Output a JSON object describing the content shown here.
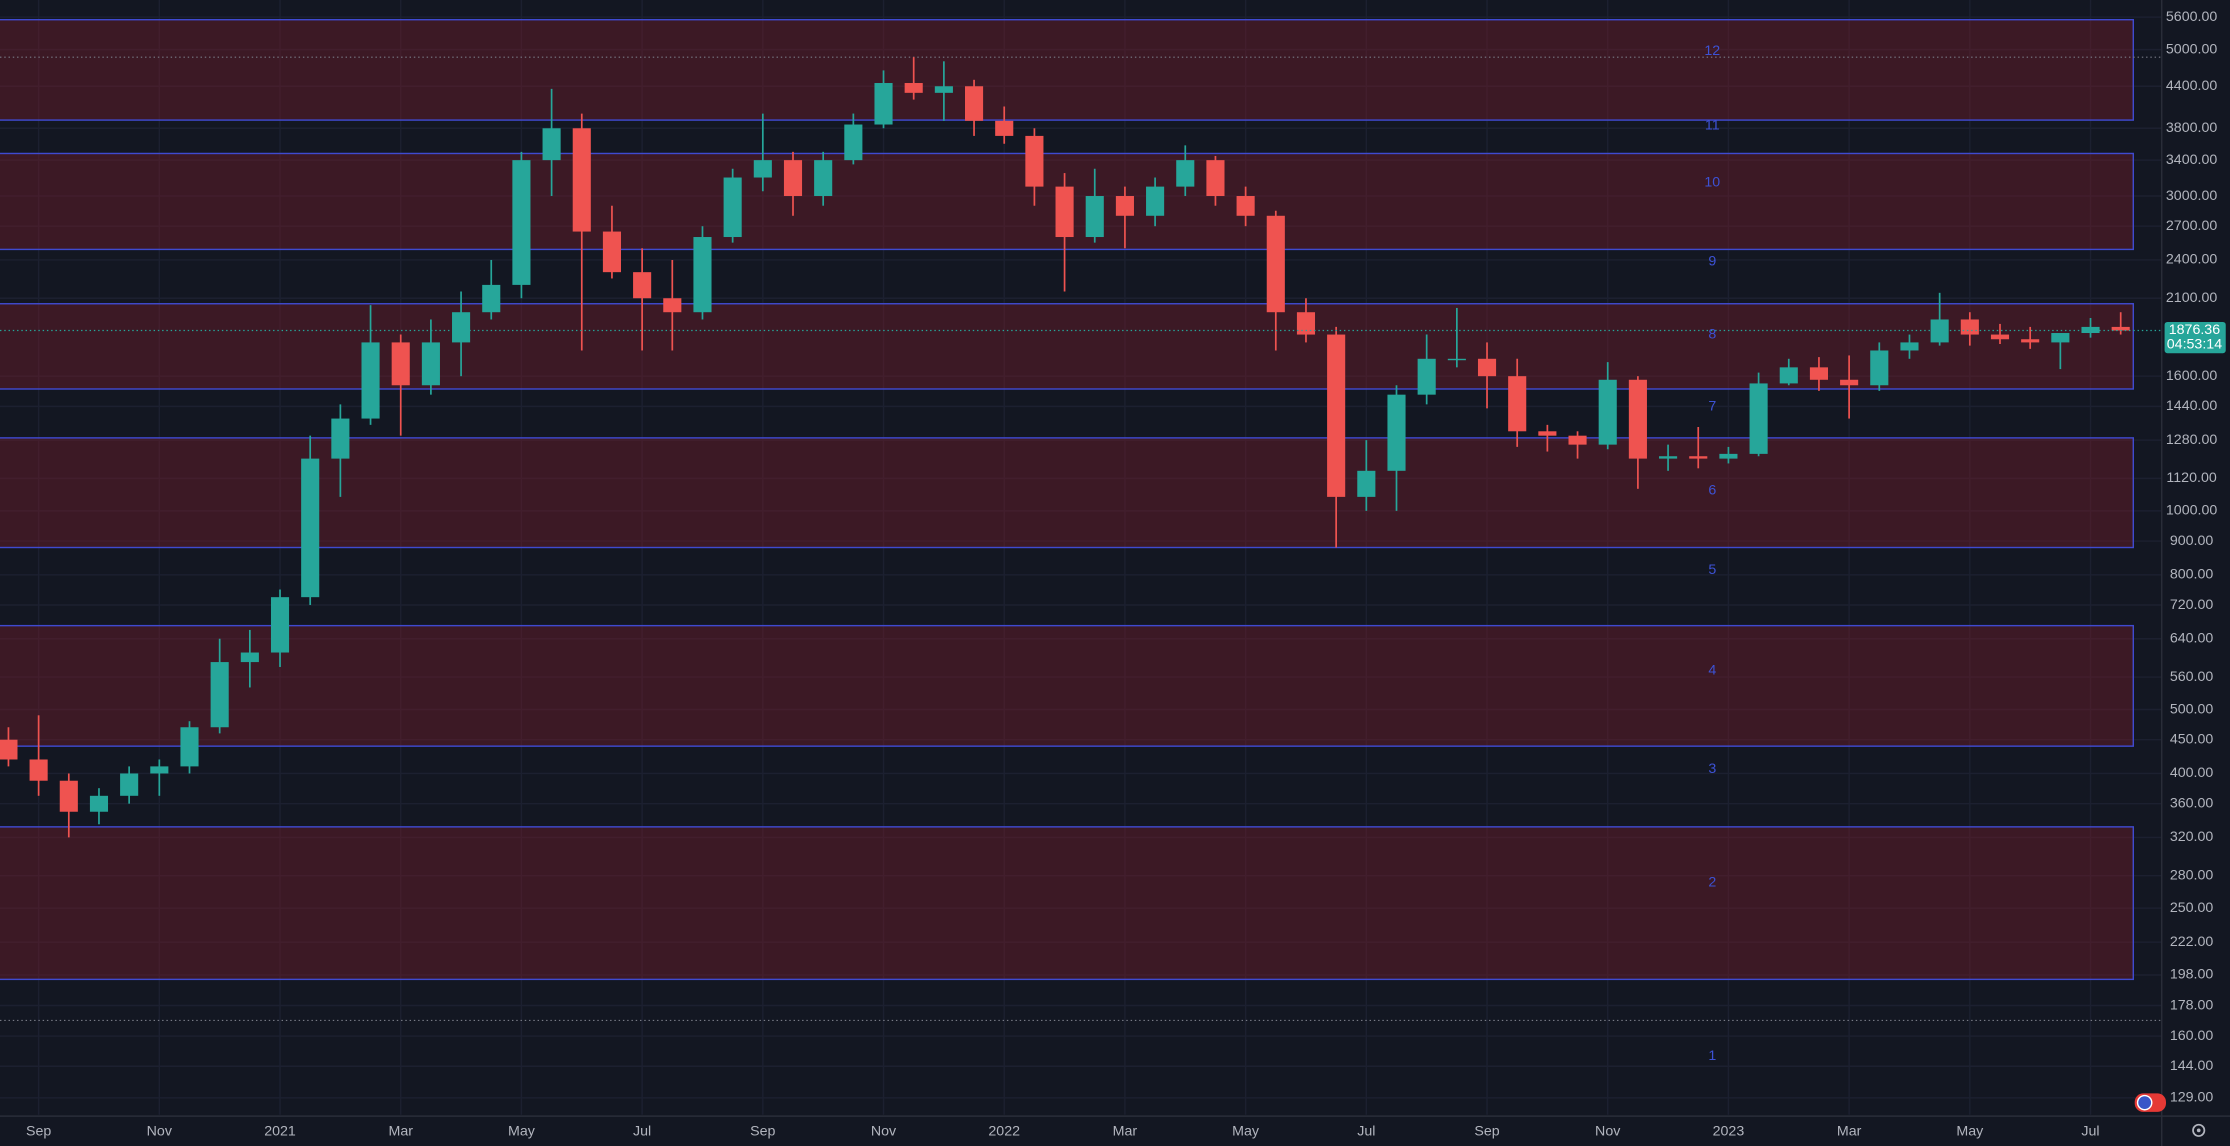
{
  "chart_data": {
    "type": "candlestick",
    "log_scale": true,
    "grid": true,
    "up_color": "#26a69a",
    "down_color": "#ef5350",
    "zone_stroke": "#3f4ad0",
    "zone_fill": "rgba(128,30,42,0.38)",
    "level_color": "#3d52d5",
    "ohlc": [
      [
        450,
        470,
        410,
        420
      ],
      [
        420,
        490,
        370,
        390
      ],
      [
        390,
        400,
        320,
        350
      ],
      [
        350,
        380,
        335,
        370
      ],
      [
        370,
        410,
        360,
        400
      ],
      [
        400,
        420,
        370,
        410
      ],
      [
        410,
        480,
        400,
        470
      ],
      [
        470,
        640,
        460,
        590
      ],
      [
        590,
        660,
        540,
        610
      ],
      [
        610,
        760,
        580,
        740
      ],
      [
        740,
        1300,
        720,
        1200
      ],
      [
        1200,
        1450,
        1050,
        1380
      ],
      [
        1380,
        2050,
        1350,
        1800
      ],
      [
        1800,
        1850,
        1300,
        1550
      ],
      [
        1550,
        1950,
        1500,
        1800
      ],
      [
        1800,
        2150,
        1600,
        2000
      ],
      [
        2000,
        2400,
        1950,
        2200
      ],
      [
        2200,
        3500,
        2100,
        3400
      ],
      [
        3400,
        4360,
        3000,
        3800
      ],
      [
        3800,
        4000,
        1750,
        2650
      ],
      [
        2650,
        2900,
        2250,
        2300
      ],
      [
        2300,
        2500,
        1750,
        2100
      ],
      [
        2100,
        2400,
        1750,
        2000
      ],
      [
        2000,
        2700,
        1950,
        2600
      ],
      [
        2600,
        3300,
        2550,
        3200
      ],
      [
        3200,
        4000,
        3050,
        3400
      ],
      [
        3400,
        3500,
        2800,
        3000
      ],
      [
        3000,
        3500,
        2900,
        3400
      ],
      [
        3400,
        4000,
        3350,
        3850
      ],
      [
        3850,
        4650,
        3800,
        4450
      ],
      [
        4450,
        4870,
        4200,
        4300
      ],
      [
        4300,
        4800,
        3900,
        4400
      ],
      [
        4400,
        4500,
        3700,
        3900
      ],
      [
        3900,
        4100,
        3600,
        3700
      ],
      [
        3700,
        3800,
        2900,
        3100
      ],
      [
        3100,
        3250,
        2150,
        2600
      ],
      [
        2600,
        3300,
        2550,
        3000
      ],
      [
        3000,
        3100,
        2500,
        2800
      ],
      [
        2800,
        3200,
        2700,
        3100
      ],
      [
        3100,
        3580,
        3000,
        3400
      ],
      [
        3400,
        3450,
        2900,
        3000
      ],
      [
        3000,
        3100,
        2700,
        2800
      ],
      [
        2800,
        2850,
        1750,
        2000
      ],
      [
        2000,
        2100,
        1800,
        1850
      ],
      [
        1850,
        1900,
        880,
        1050
      ],
      [
        1050,
        1280,
        1000,
        1150
      ],
      [
        1150,
        1550,
        1000,
        1500
      ],
      [
        1500,
        1850,
        1450,
        1700
      ],
      [
        1700,
        2030,
        1650,
        1700
      ],
      [
        1700,
        1800,
        1430,
        1600
      ],
      [
        1600,
        1700,
        1250,
        1320
      ],
      [
        1320,
        1350,
        1230,
        1300
      ],
      [
        1300,
        1320,
        1200,
        1260
      ],
      [
        1260,
        1680,
        1240,
        1580
      ],
      [
        1580,
        1600,
        1080,
        1200
      ],
      [
        1200,
        1260,
        1150,
        1210
      ],
      [
        1210,
        1340,
        1160,
        1200
      ],
      [
        1200,
        1250,
        1180,
        1220
      ],
      [
        1220,
        1620,
        1210,
        1560
      ],
      [
        1560,
        1700,
        1550,
        1650
      ],
      [
        1650,
        1710,
        1520,
        1580
      ],
      [
        1580,
        1720,
        1380,
        1550
      ],
      [
        1550,
        1800,
        1520,
        1750
      ],
      [
        1750,
        1850,
        1700,
        1800
      ],
      [
        1800,
        2140,
        1780,
        1950
      ],
      [
        1950,
        2000,
        1780,
        1850
      ],
      [
        1850,
        1920,
        1790,
        1820
      ],
      [
        1820,
        1900,
        1760,
        1800
      ],
      [
        1800,
        1850,
        1640,
        1860
      ],
      [
        1860,
        1960,
        1830,
        1900
      ],
      [
        1900,
        2000,
        1850,
        1876.36
      ]
    ],
    "xlim": [
      -0.28,
      71.36
    ],
    "xticks": [
      {
        "value": 1,
        "label": "Sep"
      },
      {
        "value": 5,
        "label": "Nov"
      },
      {
        "value": 9,
        "label": "2021"
      },
      {
        "value": 13,
        "label": "Mar"
      },
      {
        "value": 17,
        "label": "May"
      },
      {
        "value": 21,
        "label": "Jul"
      },
      {
        "value": 25,
        "label": "Sep"
      },
      {
        "value": 29,
        "label": "Nov"
      },
      {
        "value": 33,
        "label": "2022"
      },
      {
        "value": 37,
        "label": "Mar"
      },
      {
        "value": 41,
        "label": "May"
      },
      {
        "value": 45,
        "label": "Jul"
      },
      {
        "value": 49,
        "label": "Sep"
      },
      {
        "value": 53,
        "label": "Nov"
      },
      {
        "value": 57,
        "label": "2023"
      },
      {
        "value": 61,
        "label": "Mar"
      },
      {
        "value": 65,
        "label": "May"
      },
      {
        "value": 69,
        "label": "Jul"
      }
    ],
    "ylim": [
      121.6,
      5945
    ],
    "yticks": [
      {
        "value": 5600,
        "label": "5600.00"
      },
      {
        "value": 5000,
        "label": "5000.00"
      },
      {
        "value": 4400,
        "label": "4400.00"
      },
      {
        "value": 3800,
        "label": "3800.00"
      },
      {
        "value": 3400,
        "label": "3400.00"
      },
      {
        "value": 3000,
        "label": "3000.00"
      },
      {
        "value": 2700,
        "label": "2700.00"
      },
      {
        "value": 2400,
        "label": "2400.00"
      },
      {
        "value": 2100,
        "label": "2100.00"
      },
      {
        "value": 1600,
        "label": "1600.00"
      },
      {
        "value": 1440,
        "label": "1440.00"
      },
      {
        "value": 1280,
        "label": "1280.00"
      },
      {
        "value": 1120,
        "label": "1120.00"
      },
      {
        "value": 1000,
        "label": "1000.00"
      },
      {
        "value": 900,
        "label": "900.00"
      },
      {
        "value": 800,
        "label": "800.00"
      },
      {
        "value": 720,
        "label": "720.00"
      },
      {
        "value": 640,
        "label": "640.00"
      },
      {
        "value": 560,
        "label": "560.00"
      },
      {
        "value": 500,
        "label": "500.00"
      },
      {
        "value": 450,
        "label": "450.00"
      },
      {
        "value": 400,
        "label": "400.00"
      },
      {
        "value": 360,
        "label": "360.00"
      },
      {
        "value": 320,
        "label": "320.00"
      },
      {
        "value": 280,
        "label": "280.00"
      },
      {
        "value": 250,
        "label": "250.00"
      },
      {
        "value": 222,
        "label": "222.00"
      },
      {
        "value": 198,
        "label": "198.00"
      },
      {
        "value": 178,
        "label": "178.00"
      },
      {
        "value": 160,
        "label": "160.00"
      },
      {
        "value": 144,
        "label": "144.00"
      },
      {
        "value": 129,
        "label": "129.00"
      }
    ],
    "zones": [
      {
        "top": 5550,
        "bottom": 3910
      },
      {
        "top": 3480,
        "bottom": 2490
      },
      {
        "top": 2060,
        "bottom": 1530
      },
      {
        "top": 1290,
        "bottom": 880
      },
      {
        "top": 670,
        "bottom": 440
      },
      {
        "top": 332,
        "bottom": 195
      }
    ],
    "levels": [
      {
        "label": "12",
        "value": 4970
      },
      {
        "label": "11",
        "value": 3830
      },
      {
        "label": "10",
        "value": 3140
      },
      {
        "label": "9",
        "value": 2385
      },
      {
        "label": "8",
        "value": 1850
      },
      {
        "label": "7",
        "value": 1438
      },
      {
        "label": "6",
        "value": 1073
      },
      {
        "label": "5",
        "value": 813
      },
      {
        "label": "4",
        "value": 572
      },
      {
        "label": "3",
        "value": 406
      },
      {
        "label": "2",
        "value": 273
      },
      {
        "label": "1",
        "value": 149
      }
    ],
    "hlines": [
      4870,
      169
    ],
    "last_price": 1876.36,
    "countdown": "04:53:14"
  }
}
